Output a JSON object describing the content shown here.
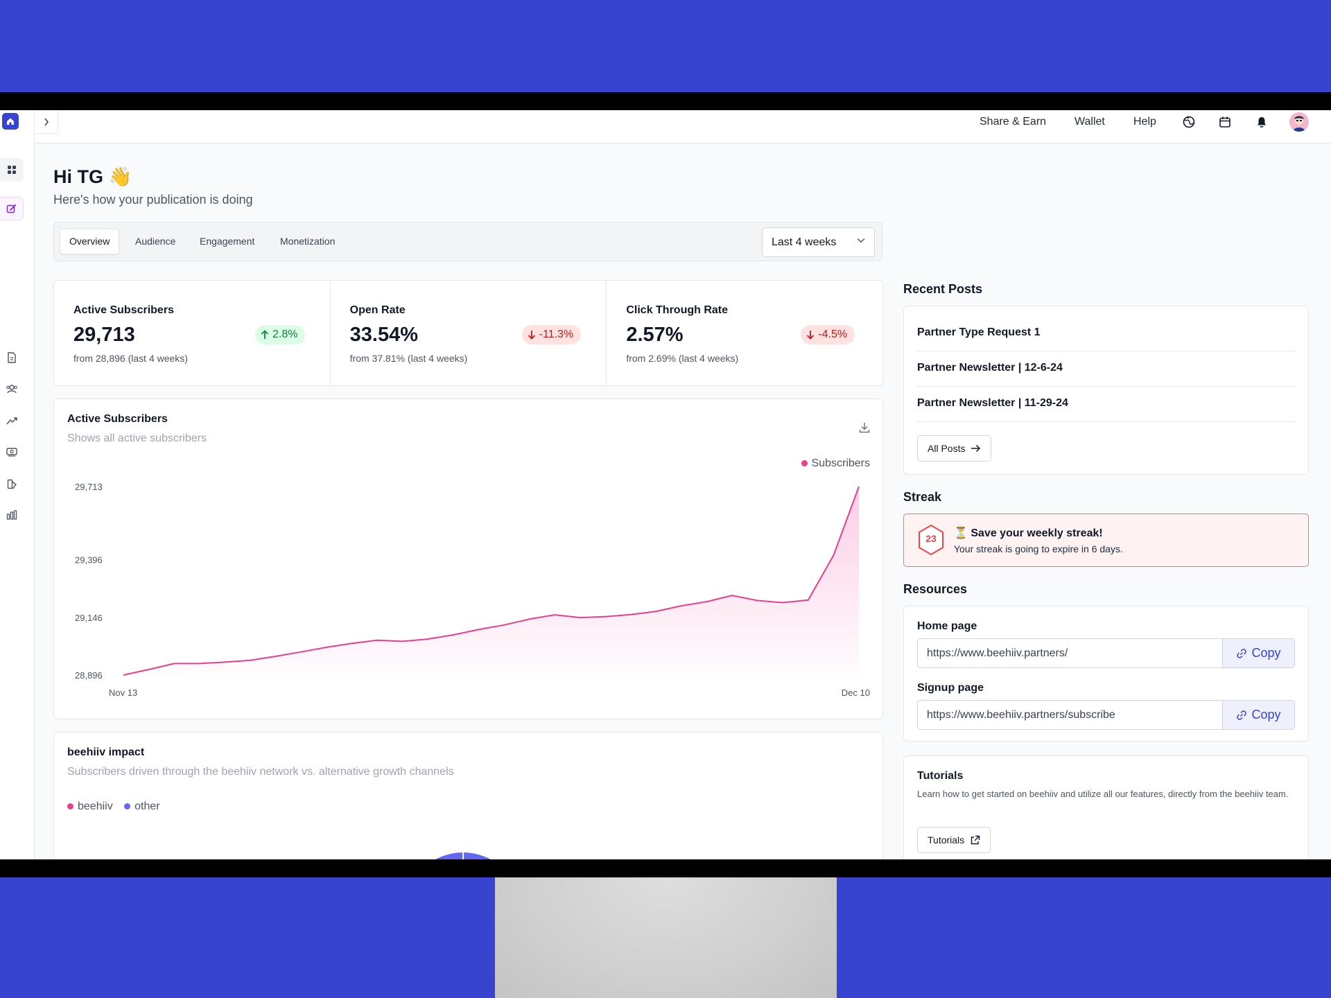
{
  "topbar": {
    "share_earn": "Share & Earn",
    "wallet": "Wallet",
    "help": "Help"
  },
  "header": {
    "greeting": "Hi TG 👋",
    "subtitle": "Here's how your publication is doing"
  },
  "tabs": [
    {
      "label": "Overview",
      "active": true
    },
    {
      "label": "Audience",
      "active": false
    },
    {
      "label": "Engagement",
      "active": false
    },
    {
      "label": "Monetization",
      "active": false
    }
  ],
  "range": {
    "selected": "Last 4 weeks"
  },
  "stats": [
    {
      "label": "Active Subscribers",
      "value": "29,713",
      "change": "2.8%",
      "direction": "up",
      "from": "from 28,896 (last 4 weeks)"
    },
    {
      "label": "Open Rate",
      "value": "33.54%",
      "change": "-11.3%",
      "direction": "down",
      "from": "from 37.81% (last 4 weeks)"
    },
    {
      "label": "Click Through Rate",
      "value": "2.57%",
      "change": "-4.5%",
      "direction": "down",
      "from": "from 2.69% (last 4 weeks)"
    }
  ],
  "subscribers_card": {
    "title": "Active Subscribers",
    "subtitle": "Shows all active subscribers",
    "legend": "Subscribers"
  },
  "chart_data": {
    "type": "area",
    "series": [
      {
        "name": "Subscribers",
        "color": "#e83e8c",
        "values": [
          28896,
          28920,
          28946,
          28946,
          28952,
          28960,
          28977,
          28996,
          29016,
          29033,
          29047,
          29042,
          29052,
          29070,
          29093,
          29113,
          29138,
          29157,
          29145,
          29149,
          29158,
          29172,
          29196,
          29214,
          29241,
          29219,
          29210,
          29221,
          29415,
          29713
        ]
      }
    ],
    "x_start_label": "Nov 13",
    "x_end_label": "Dec 10",
    "y_ticks": [
      "29,713",
      "29,396",
      "29,146",
      "28,896"
    ],
    "ylim": [
      28896,
      29713
    ],
    "grid": false,
    "legend": "top-right"
  },
  "impact_card": {
    "title": "beehiiv impact",
    "subtitle": "Subscribers driven through the beehiiv network vs. alternative growth channels",
    "legend": [
      {
        "label": "beehiiv",
        "color": "#e83e8c"
      },
      {
        "label": "other",
        "color": "#6366f1"
      }
    ]
  },
  "recent_posts": {
    "title": "Recent Posts",
    "items": [
      "Partner Type Request 1",
      "Partner Newsletter | 12-6-24",
      "Partner Newsletter | 11-29-24"
    ],
    "all_posts_label": "All Posts"
  },
  "streak": {
    "section_title": "Streak",
    "count": "23",
    "title": "⏳ Save your weekly streak!",
    "text": "Your streak is going to expire in 6 days."
  },
  "resources": {
    "title": "Resources",
    "home_label": "Home page",
    "home_url": "https://www.beehiiv.partners/",
    "signup_label": "Signup page",
    "signup_url": "https://www.beehiiv.partners/subscribe",
    "copy_label": "Copy"
  },
  "tutorials": {
    "title": "Tutorials",
    "text": "Learn how to get started on beehiiv and utilize all our features, directly from the beehiiv team.",
    "button_label": "Tutorials"
  },
  "colors": {
    "brand": "#3843d0",
    "accent_pink": "#e83e8c",
    "positive": "#15803d",
    "negative": "#b91c1c"
  }
}
